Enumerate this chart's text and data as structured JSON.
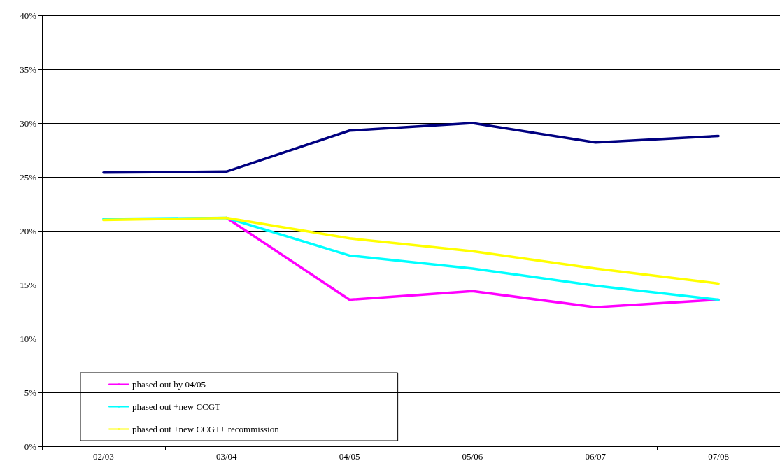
{
  "chart_data": {
    "type": "line",
    "categories": [
      "02/03",
      "03/04",
      "04/05",
      "05/06",
      "06/07",
      "07/08"
    ],
    "series": [
      {
        "color": "#000080",
        "values": [
          25.4,
          25.5,
          29.3,
          30.0,
          28.2,
          28.8
        ]
      },
      {
        "name": "phased out by 04/05",
        "color": "#ff00ff",
        "values": [
          null,
          21.2,
          13.6,
          14.4,
          12.9,
          13.6
        ]
      },
      {
        "name": "phased out +new CCGT",
        "color": "#00ffff",
        "values": [
          21.1,
          21.2,
          17.7,
          16.5,
          14.9,
          13.6
        ]
      },
      {
        "name": "phased out +new CCGT+ recommission",
        "color": "#ffff00",
        "values": [
          21.0,
          21.2,
          19.3,
          18.1,
          16.5,
          15.1
        ]
      }
    ],
    "ylim": [
      0,
      40
    ],
    "yticks": [
      {
        "value": 0,
        "label": "0%"
      },
      {
        "value": 5,
        "label": "5%"
      },
      {
        "value": 10,
        "label": "10%"
      },
      {
        "value": 15,
        "label": "15%"
      },
      {
        "value": 20,
        "label": "20%"
      },
      {
        "value": 25,
        "label": "25%"
      },
      {
        "value": 30,
        "label": "30%"
      },
      {
        "value": 35,
        "label": "35%"
      },
      {
        "value": 40,
        "label": "40%"
      }
    ],
    "grid": "y",
    "legend": "bottom left",
    "marker": "none",
    "line_style": "solid"
  }
}
